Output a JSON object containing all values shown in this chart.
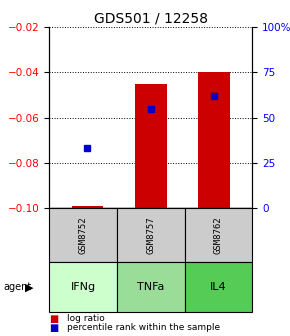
{
  "title": "GDS501 / 12258",
  "samples": [
    "GSM8752",
    "GSM8757",
    "GSM8762"
  ],
  "agents": [
    "IFNg",
    "TNFa",
    "IL4"
  ],
  "log_ratios": [
    -0.099,
    -0.045,
    -0.04
  ],
  "percentile_ranks": [
    33,
    55,
    62
  ],
  "bar_bottom": -0.1,
  "ylim_left": [
    -0.1,
    -0.02
  ],
  "ylim_right": [
    0,
    100
  ],
  "yticks_left": [
    -0.1,
    -0.08,
    -0.06,
    -0.04,
    -0.02
  ],
  "yticks_right": [
    0,
    25,
    50,
    75,
    100
  ],
  "bar_color": "#cc0000",
  "dot_color": "#0000cc",
  "agent_colors": [
    "#ccffcc",
    "#99dd99",
    "#55cc55"
  ],
  "sample_box_color": "#cccccc",
  "legend_bar_label": "log ratio",
  "legend_dot_label": "percentile rank within the sample",
  "title_fontsize": 10,
  "tick_fontsize": 7.5,
  "label_fontsize": 7
}
